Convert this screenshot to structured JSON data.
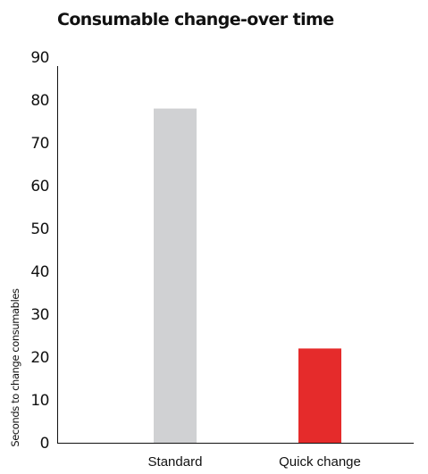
{
  "chart_data": {
    "type": "bar",
    "title": "Consumable change-over time",
    "xlabel": "",
    "ylabel": "Seconds to change consumables",
    "categories": [
      "Standard",
      "Quick change"
    ],
    "values": [
      78,
      22
    ],
    "bar_colors": [
      "#d0d1d3",
      "#e52b2b"
    ],
    "ylim": [
      0,
      90
    ],
    "yticks": [
      0,
      10,
      20,
      30,
      40,
      50,
      60,
      70,
      80,
      90
    ],
    "grid": false,
    "legend": "none"
  }
}
